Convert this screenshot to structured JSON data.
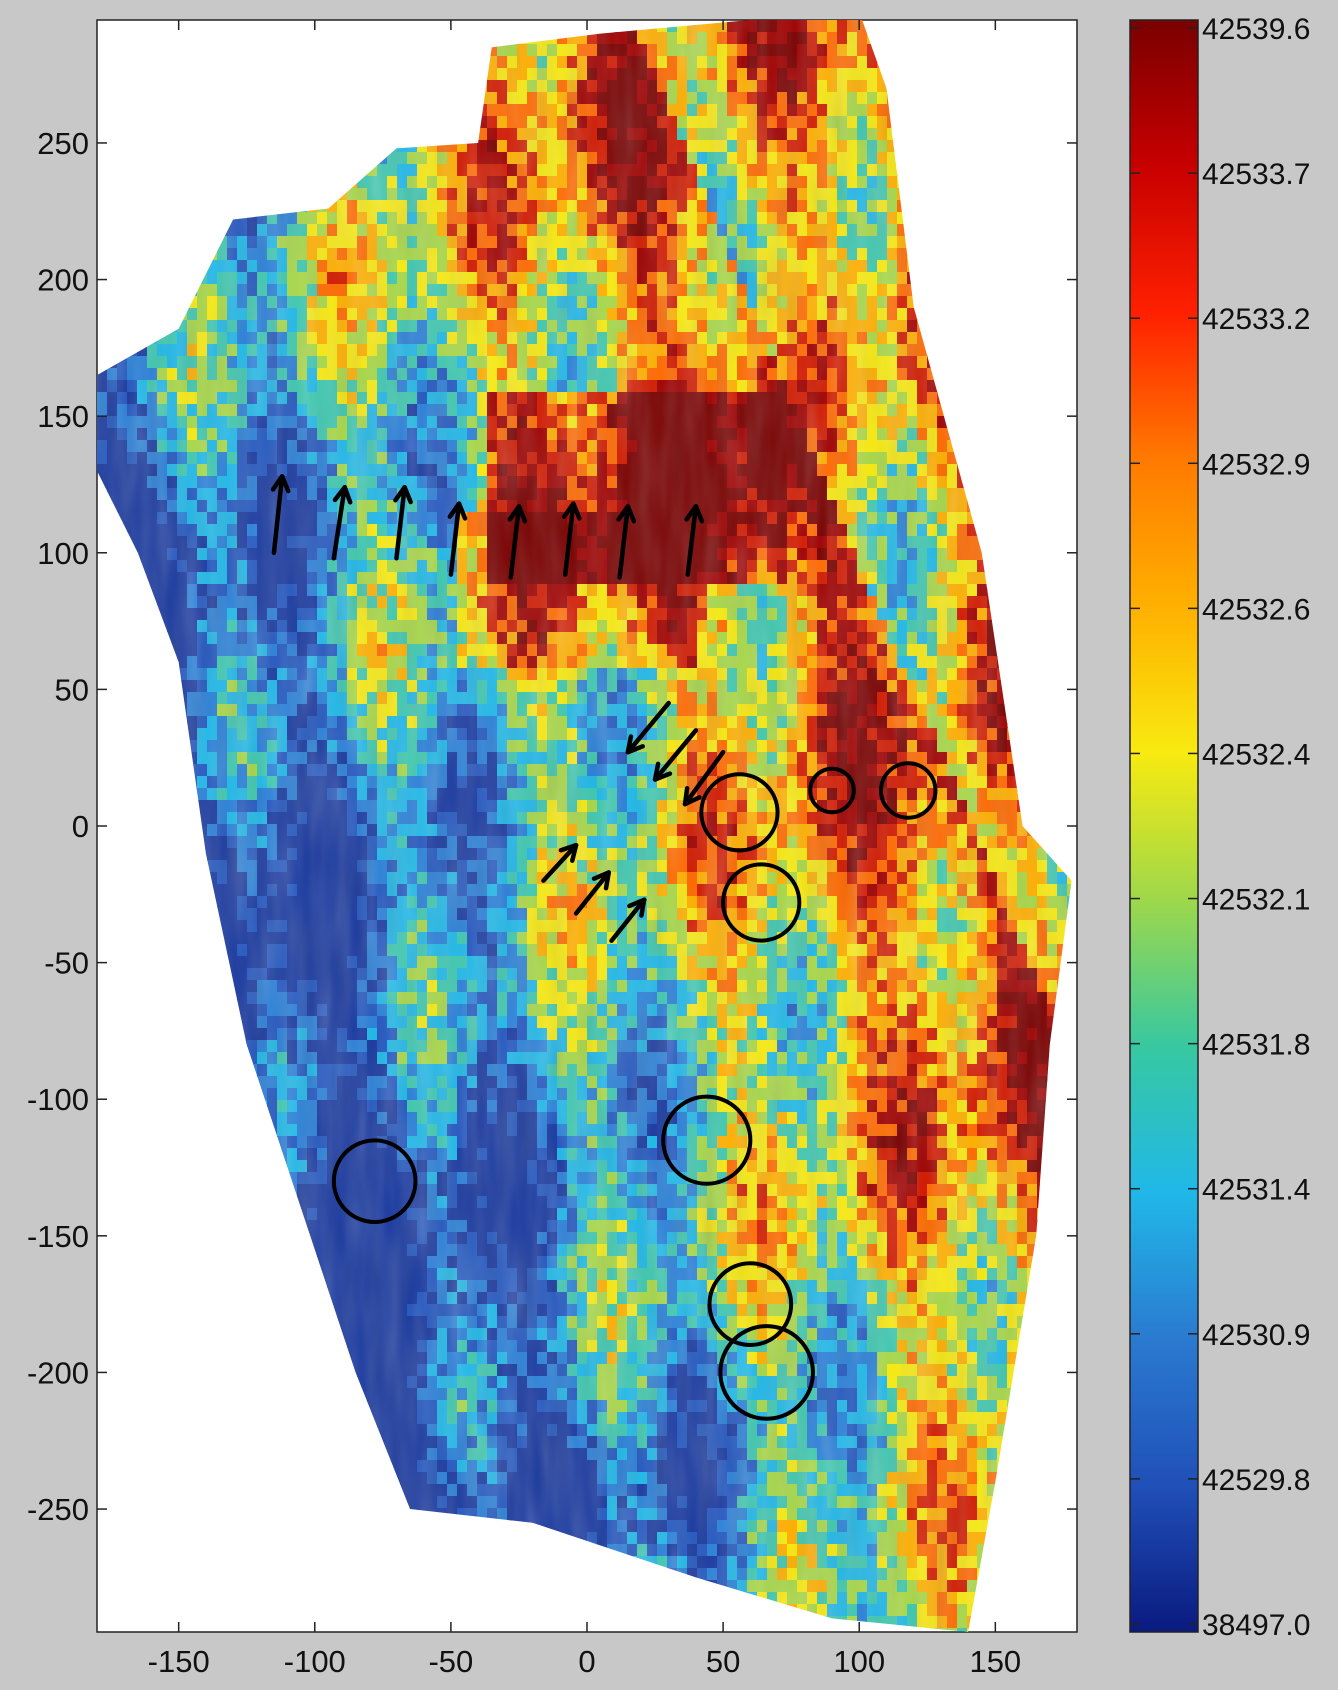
{
  "chart_data": {
    "type": "heatmap",
    "title": "",
    "xlabel": "",
    "ylabel": "",
    "xlim": [
      -180,
      180
    ],
    "ylim": [
      -295,
      295
    ],
    "x_ticks": [
      -150,
      -100,
      -50,
      0,
      50,
      100,
      150
    ],
    "y_ticks": [
      250,
      200,
      150,
      100,
      50,
      0,
      -50,
      -100,
      -150,
      -200,
      -250
    ],
    "grid": false,
    "colorbar": {
      "placement": "right",
      "tick_labels": [
        "42539.6",
        "42533.7",
        "42533.2",
        "42532.9",
        "42532.6",
        "42532.4",
        "42532.1",
        "42531.8",
        "42531.4",
        "42530.9",
        "42529.8",
        "38497.0"
      ],
      "colors": [
        "#7a0000",
        "#c80000",
        "#ff2000",
        "#ff7a00",
        "#ffb000",
        "#f8ea10",
        "#9ed84a",
        "#38c8a0",
        "#20b8e8",
        "#2a7ad0",
        "#2050b8",
        "#0a1a80"
      ]
    },
    "survey_polygon": [
      [
        -180,
        165
      ],
      [
        -150,
        182
      ],
      [
        -130,
        222
      ],
      [
        -95,
        226
      ],
      [
        -70,
        248
      ],
      [
        -40,
        250
      ],
      [
        -35,
        285
      ],
      [
        5,
        290
      ],
      [
        60,
        295
      ],
      [
        100,
        298
      ],
      [
        110,
        270
      ],
      [
        120,
        190
      ],
      [
        145,
        100
      ],
      [
        160,
        0
      ],
      [
        178,
        -20
      ],
      [
        170,
        -80
      ],
      [
        165,
        -150
      ],
      [
        150,
        -240
      ],
      [
        140,
        -295
      ],
      [
        90,
        -290
      ],
      [
        40,
        -275
      ],
      [
        -20,
        -255
      ],
      [
        -65,
        -250
      ],
      [
        -85,
        -200
      ],
      [
        -105,
        -140
      ],
      [
        -125,
        -80
      ],
      [
        -140,
        -10
      ],
      [
        -150,
        60
      ],
      [
        -165,
        100
      ],
      [
        -180,
        130
      ]
    ],
    "anomaly_circles": [
      {
        "x": 56,
        "y": 5,
        "r": 14
      },
      {
        "x": 90,
        "y": 13,
        "r": 8
      },
      {
        "x": 118,
        "y": 13,
        "r": 10
      },
      {
        "x": 64,
        "y": -28,
        "r": 14
      },
      {
        "x": 44,
        "y": -115,
        "r": 16
      },
      {
        "x": -78,
        "y": -130,
        "r": 15
      },
      {
        "x": 60,
        "y": -175,
        "r": 15
      },
      {
        "x": 66,
        "y": -200,
        "r": 17
      }
    ],
    "arrows": [
      {
        "x1": -115,
        "y1": 100,
        "x2": -112,
        "y2": 128
      },
      {
        "x1": -93,
        "y1": 98,
        "x2": -89,
        "y2": 124
      },
      {
        "x1": -70,
        "y1": 98,
        "x2": -67,
        "y2": 124
      },
      {
        "x1": -50,
        "y1": 92,
        "x2": -47,
        "y2": 118
      },
      {
        "x1": -28,
        "y1": 91,
        "x2": -25,
        "y2": 117
      },
      {
        "x1": -8,
        "y1": 92,
        "x2": -5,
        "y2": 118
      },
      {
        "x1": 12,
        "y1": 91,
        "x2": 15,
        "y2": 117
      },
      {
        "x1": 37,
        "y1": 92,
        "x2": 40,
        "y2": 117
      },
      {
        "x1": 30,
        "y1": 45,
        "x2": 15,
        "y2": 27
      },
      {
        "x1": 40,
        "y1": 35,
        "x2": 25,
        "y2": 17
      },
      {
        "x1": 50,
        "y1": 27,
        "x2": 36,
        "y2": 8
      },
      {
        "x1": -16,
        "y1": -20,
        "x2": -4,
        "y2": -7
      },
      {
        "x1": -4,
        "y1": -32,
        "x2": 8,
        "y2": -17
      },
      {
        "x1": 9,
        "y1": -42,
        "x2": 21,
        "y2": -27
      }
    ]
  }
}
